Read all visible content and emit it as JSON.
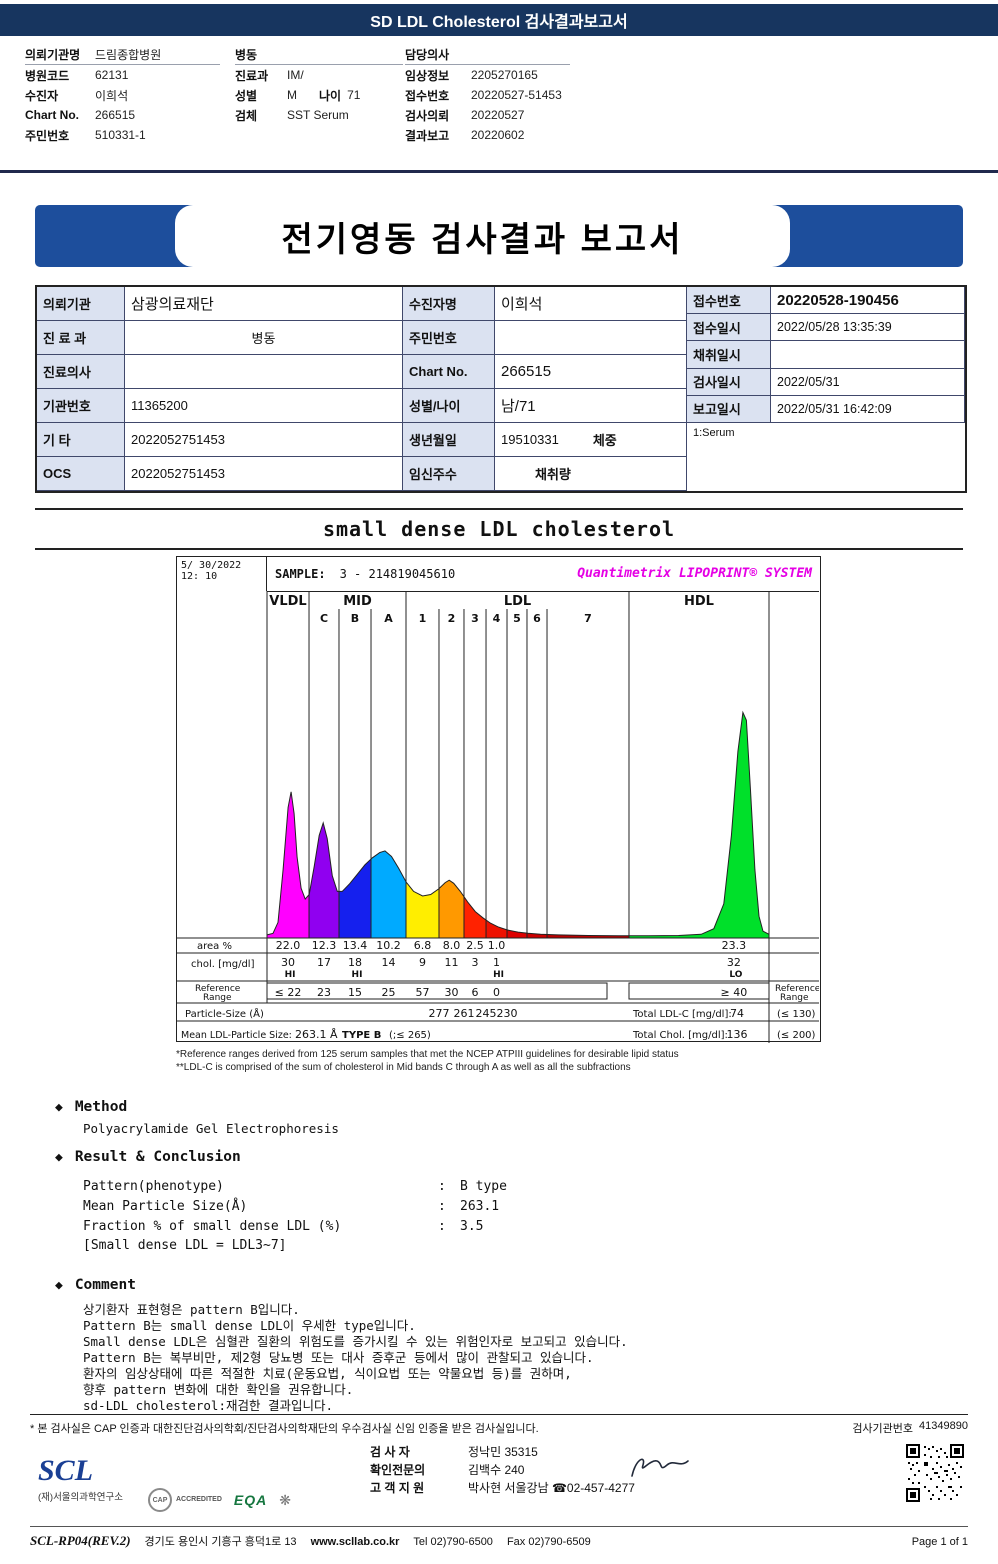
{
  "header": {
    "title": "SD LDL Cholesterol 검사결과보고서"
  },
  "patient_header": {
    "col1": [
      {
        "label": "의뢰기관명",
        "value": "드림종합병원"
      },
      {
        "label": "병원코드",
        "value": "62131"
      },
      {
        "label": "수진자",
        "value": "이희석"
      },
      {
        "label": "Chart No.",
        "value": "266515"
      },
      {
        "label": "주민번호",
        "value": "510331-1"
      }
    ],
    "col2": [
      {
        "label": "병동",
        "value": ""
      },
      {
        "label": "진료과",
        "value": "IM/"
      },
      {
        "label": "성별",
        "value": "M",
        "label2": "나이",
        "value2": "71"
      },
      {
        "label": "검체",
        "value": "SST Serum"
      }
    ],
    "col3": [
      {
        "label": "담당의사",
        "value": ""
      },
      {
        "label": "임상정보",
        "value": "2205270165"
      },
      {
        "label": "접수번호",
        "value": "20220527-51453"
      },
      {
        "label": "검사의뢰",
        "value": "20220527"
      },
      {
        "label": "결과보고",
        "value": "20220602"
      }
    ]
  },
  "report": {
    "banner_title": "전기영동 검사결과 보고서",
    "left_rows": [
      {
        "l1": "의뢰기관",
        "v1": "삼광의료재단",
        "l2": "수진자명",
        "v2": "이희석"
      },
      {
        "l1": "진 료 과",
        "v1": "병동",
        "l2": "주민번호",
        "v2": ""
      },
      {
        "l1": "진료의사",
        "v1": "",
        "l2": "Chart No.",
        "v2": "266515"
      },
      {
        "l1": "기관번호",
        "v1": "11365200",
        "l2": "성별/나이",
        "v2": "남/71"
      },
      {
        "l1": "기 타",
        "v1": "2022052751453",
        "l2": "생년월일",
        "v2": "19510331",
        "v2b": "체중"
      },
      {
        "l1": "OCS",
        "v1": "2022052751453",
        "l2": "임신주수",
        "v2": "",
        "v2b": "채취량"
      }
    ],
    "right_rows": [
      {
        "label": "접수번호",
        "value": "20220528-190456"
      },
      {
        "label": "접수일시",
        "value": "2022/05/28 13:35:39"
      },
      {
        "label": "채취일시",
        "value": ""
      },
      {
        "label": "검사일시",
        "value": "2022/05/31"
      },
      {
        "label": "보고일시",
        "value": "2022/05/31 16:42:09"
      }
    ],
    "serum_note": "1:Serum"
  },
  "section_title": "small dense LDL cholesterol",
  "chart_data": {
    "type": "area",
    "datetime": [
      "5/ 30/2022",
      "12: 10"
    ],
    "sample_label": "SAMPLE:",
    "sample_value": "3 - 214819045610",
    "brand": "Quantimetrix LIPOPRINT® SYSTEM",
    "groups": [
      {
        "name": "VLDL",
        "from": 0,
        "to": 1
      },
      {
        "name": "MID",
        "from": 1,
        "to": 4
      },
      {
        "name": "LDL",
        "from": 4,
        "to": 11
      },
      {
        "name": "HDL",
        "from": 11,
        "to": 12
      }
    ],
    "boundaries_norm": [
      0,
      0.0837,
      0.1434,
      0.2072,
      0.2769,
      0.3426,
      0.3924,
      0.4363,
      0.4781,
      0.5179,
      0.5578,
      0.7211,
      1.0
    ],
    "bands": [
      {
        "sub": "",
        "color": "#ff00ff",
        "area_pct": "22.0",
        "chol": "30",
        "flag": "HI",
        "ref": "≤ 22"
      },
      {
        "sub": "C",
        "color": "#9000f0",
        "area_pct": "12.3",
        "chol": "17",
        "flag": "",
        "ref": "23"
      },
      {
        "sub": "B",
        "color": "#1520ee",
        "area_pct": "13.4",
        "chol": "18",
        "flag": "HI",
        "ref": "15"
      },
      {
        "sub": "A",
        "color": "#00aaff",
        "area_pct": "10.2",
        "chol": "14",
        "flag": "",
        "ref": "25"
      },
      {
        "sub": "1",
        "color": "#ffee00",
        "area_pct": "6.8",
        "chol": "9",
        "flag": "",
        "ref": "57"
      },
      {
        "sub": "2",
        "color": "#ff9900",
        "area_pct": "8.0",
        "chol": "11",
        "flag": "",
        "ref": "30"
      },
      {
        "sub": "3",
        "color": "#ff2200",
        "area_pct": "2.5",
        "chol": "3",
        "flag": "",
        "ref": "6"
      },
      {
        "sub": "4",
        "color": "#ee1100",
        "area_pct": "1.0",
        "chol": "1",
        "flag": "HI",
        "ref": "0"
      },
      {
        "sub": "5",
        "color": "#dd0000"
      },
      {
        "sub": "6",
        "color": "#cc0000"
      },
      {
        "sub": "7",
        "color": "#bb0000"
      },
      {
        "sub": "",
        "color": "#00e02a",
        "area_pct": "23.3",
        "chol": "32",
        "flag": "LO",
        "ref": "≥ 40",
        "vx": 0.93
      }
    ],
    "curve": [
      [
        0.0,
        0.01
      ],
      [
        0.012,
        0.015
      ],
      [
        0.022,
        0.05
      ],
      [
        0.032,
        0.22
      ],
      [
        0.042,
        0.42
      ],
      [
        0.048,
        0.47
      ],
      [
        0.054,
        0.4
      ],
      [
        0.06,
        0.26
      ],
      [
        0.068,
        0.16
      ],
      [
        0.076,
        0.125
      ],
      [
        0.084,
        0.14
      ],
      [
        0.094,
        0.23
      ],
      [
        0.104,
        0.33
      ],
      [
        0.112,
        0.37
      ],
      [
        0.12,
        0.32
      ],
      [
        0.13,
        0.2
      ],
      [
        0.14,
        0.15
      ],
      [
        0.15,
        0.15
      ],
      [
        0.165,
        0.175
      ],
      [
        0.18,
        0.205
      ],
      [
        0.195,
        0.235
      ],
      [
        0.21,
        0.258
      ],
      [
        0.225,
        0.275
      ],
      [
        0.235,
        0.28
      ],
      [
        0.248,
        0.262
      ],
      [
        0.262,
        0.225
      ],
      [
        0.277,
        0.18
      ],
      [
        0.292,
        0.15
      ],
      [
        0.31,
        0.135
      ],
      [
        0.326,
        0.14
      ],
      [
        0.342,
        0.158
      ],
      [
        0.355,
        0.178
      ],
      [
        0.363,
        0.186
      ],
      [
        0.372,
        0.176
      ],
      [
        0.385,
        0.15
      ],
      [
        0.4,
        0.115
      ],
      [
        0.415,
        0.085
      ],
      [
        0.43,
        0.065
      ],
      [
        0.445,
        0.048
      ],
      [
        0.46,
        0.036
      ],
      [
        0.478,
        0.026
      ],
      [
        0.5,
        0.019
      ],
      [
        0.52,
        0.015
      ],
      [
        0.545,
        0.012
      ],
      [
        0.58,
        0.01
      ],
      [
        0.64,
        0.008
      ],
      [
        0.7,
        0.007
      ],
      [
        0.76,
        0.007
      ],
      [
        0.82,
        0.008
      ],
      [
        0.865,
        0.012
      ],
      [
        0.89,
        0.03
      ],
      [
        0.91,
        0.11
      ],
      [
        0.925,
        0.33
      ],
      [
        0.938,
        0.6
      ],
      [
        0.948,
        0.725
      ],
      [
        0.955,
        0.7
      ],
      [
        0.963,
        0.48
      ],
      [
        0.972,
        0.22
      ],
      [
        0.98,
        0.07
      ],
      [
        0.988,
        0.022
      ],
      [
        1.0,
        0.012
      ]
    ],
    "row_labels": {
      "area": "area %",
      "chol": "chol. [mg/dl]",
      "ref1": "Reference",
      "ref2": "Range",
      "particle": "Particle-Size (Å)",
      "mean": "Mean LDL-Particle Size:"
    },
    "particle_sizes": [
      {
        "value": "277",
        "boundary": 5
      },
      {
        "value": "261",
        "boundary": 6
      },
      {
        "value": "245",
        "boundary": 7
      },
      {
        "value": "230",
        "boundary": 8
      }
    ],
    "mean_particle": {
      "value": "263.1 Å",
      "flag": "TYPE B",
      "ref": "(;≤ 265)"
    },
    "total_ldl": {
      "label": "Total LDL-C [mg/dl]:",
      "value": "74",
      "ref": "(≤ 130)"
    },
    "total_chol": {
      "label": "Total Chol. [mg/dl]:",
      "value": "136",
      "ref": "(≤ 200)"
    },
    "footnotes": [
      "*Reference ranges derived from 125 serum samples that met the NCEP ATPIII guidelines for desirable lipid status",
      "**LDL-C is comprised of the sum of cholesterol in Mid bands C through A as well as all the subfractions"
    ]
  },
  "method": {
    "heading": "Method",
    "value": "Polyacrylamide Gel Electrophoresis"
  },
  "result": {
    "heading": "Result & Conclusion",
    "rows": [
      {
        "name": "Pattern(phenotype)",
        "value": "B type"
      },
      {
        "name": "Mean Particle Size(Å)",
        "value": "263.1"
      },
      {
        "name": "Fraction % of small dense LDL (%)",
        "value": "3.5"
      }
    ],
    "note": "[Small dense LDL = LDL3~7]"
  },
  "comment": {
    "heading": "Comment",
    "lines": [
      "상기환자 표현형은 pattern B입니다.",
      "Pattern B는 small dense LDL이 우세한 type입니다.",
      "Small dense LDL은 심혈관 질환의 위험도를 증가시킬 수 있는 위험인자로 보고되고 있습니다.",
      "Pattern B는 복부비만, 제2형 당뇨병 또는 대사 증후군 등에서 많이 관찰되고 있습니다.",
      "환자의 임상상태에 따른 적절한 치료(운동요법, 식이요법 또는 약물요법 등)를 권하며,",
      "향후 pattern 변화에 대한 확인을 권유합니다.",
      "sd-LDL cholesterol:재검한 결과입니다."
    ]
  },
  "footer": {
    "cert_note": "* 본 검사실은 CAP 인증과 대한진단검사의학회/진단검사의학재단의 우수검사실 신임 인증을 받은 검사실입니다.",
    "org_number_label": "검사기관번호",
    "org_number": "41349890",
    "staff": [
      {
        "label": "검  사  자",
        "value": "정낙민 35315"
      },
      {
        "label": "확인전문의",
        "value": "김백수 240"
      },
      {
        "label": "고 객 지 원",
        "value": "박사현 서울강남 ☎02-457-4277"
      }
    ],
    "scl_logo": "SCL",
    "scl_sub": "(재)서울의과학연구소",
    "cap_label": "CAP",
    "cap_sub": "ACCREDITED",
    "eqa_label": "EQA",
    "kolas_label": "❋",
    "doc_code": "SCL-RP04(REV.2)",
    "address": "경기도 용인시 기흥구 흥덕1로 13",
    "website": "www.scllab.co.kr",
    "tel": "Tel 02)790-6500",
    "fax": "Fax 02)790-6509",
    "page": "Page 1 of 1"
  }
}
